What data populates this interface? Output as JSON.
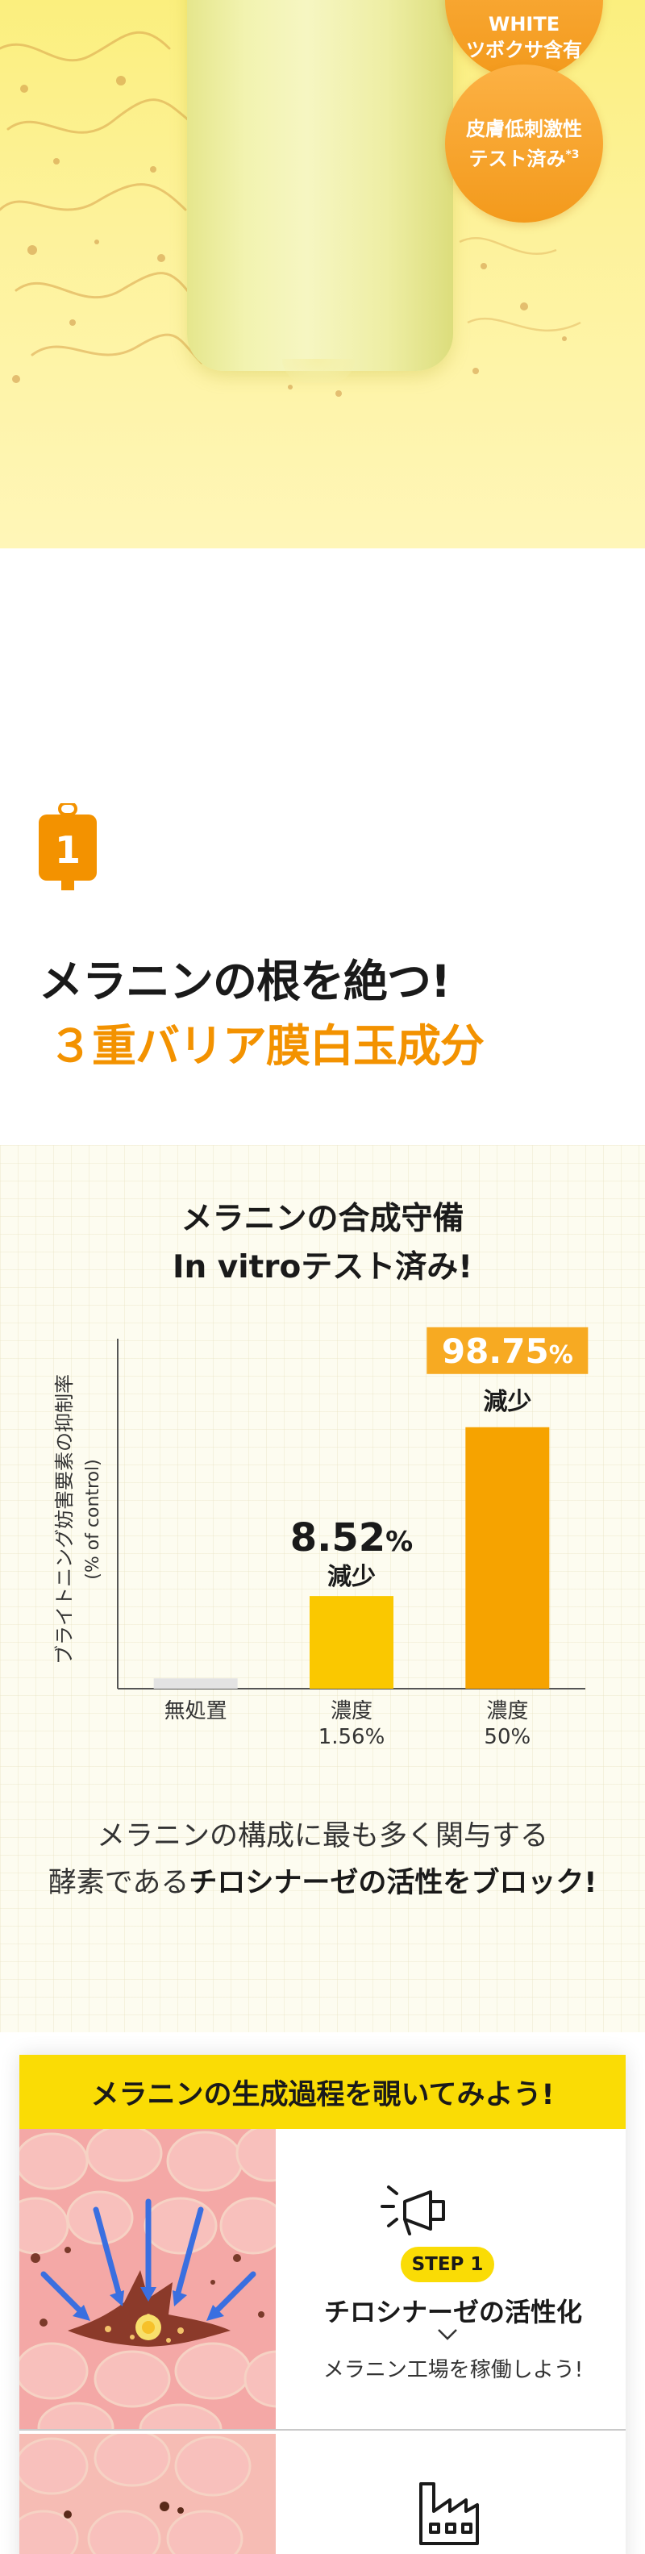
{
  "hero": {
    "badge1": {
      "line1": "WHITE",
      "line2": "ツボクサ含有"
    },
    "badge2": {
      "line1": "皮膚低刺激性",
      "line2": "テスト済み",
      "note": "*3"
    },
    "colors": {
      "background": "#fbef7e",
      "badge": "#f39a1c"
    }
  },
  "section1": {
    "number": "1",
    "number_icon": "drip-bag-icon",
    "title_line1": "メラニンの根を絶つ!",
    "title_line2": "３重バリア膜白玉成分"
  },
  "chart_section": {
    "title_line1": "メラニンの合成守備",
    "title_line2": "In vitroテスト済み!",
    "desc_line1": "メラニンの構成に最も多く関与する",
    "desc_line2_prefix": "酵素である",
    "desc_line2_bold": "チロシナーゼの活性をブロック!"
  },
  "chart_data": {
    "type": "bar",
    "categories": [
      "無処置",
      "濃度\n1.56%",
      "濃度\n50%"
    ],
    "category_lines": [
      [
        "無処置"
      ],
      [
        "濃度",
        "1.56%"
      ],
      [
        "濃度",
        "50%"
      ]
    ],
    "values": [
      5,
      45,
      127
    ],
    "ylim": [
      0,
      170
    ],
    "ylabel_line1": "ブライトニング妨害要素の抑制率",
    "ylabel_line2": "(% of control)",
    "annotations": [
      {
        "index": 1,
        "value_text": "8.52",
        "unit": "%",
        "label": "減少"
      },
      {
        "index": 2,
        "value_text": "98.75",
        "unit": "%",
        "label": "減少"
      }
    ],
    "colors": [
      "#e3e3e3",
      "#fac800",
      "#f6a300"
    ],
    "highlight_box": "#f7aa22",
    "grid": false
  },
  "process": {
    "header": "メラニンの生成過程を覗いてみよう!",
    "step1": {
      "icon": "megaphone-icon",
      "badge": "STEP 1",
      "title": "チロシナーゼの活性化",
      "subtitle": "メラニン工場を稼働しよう!"
    },
    "step2": {
      "icon": "factory-icon"
    },
    "colors": {
      "header": "#fadc05"
    }
  }
}
